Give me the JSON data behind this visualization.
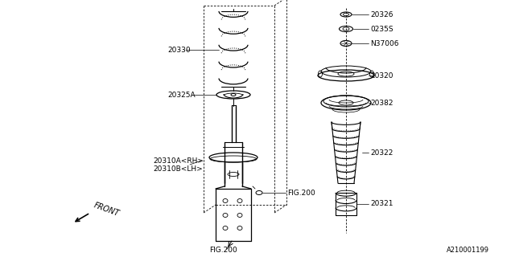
{
  "bg_color": "#ffffff",
  "line_color": "#000000",
  "text_color": "#000000",
  "figure_id": "A210001199",
  "parts": {
    "spring_label": "20330",
    "spring_seat_label": "20325A",
    "strut_label_rh": "20310A<RH>",
    "strut_label_lh": "20310B<LH>",
    "front_label": "FRONT",
    "fig200_bolt": "FIG.200",
    "fig200_bottom": "FIG.200",
    "nut_label": "20326",
    "washer_label": "0235S",
    "bolt_label": "N37006",
    "mount_label": "20320",
    "bump_top_label": "20382",
    "bump_label": "20322",
    "bump_bot_label": "20321"
  },
  "font_size": 6.5,
  "font_family": "DejaVu Sans"
}
